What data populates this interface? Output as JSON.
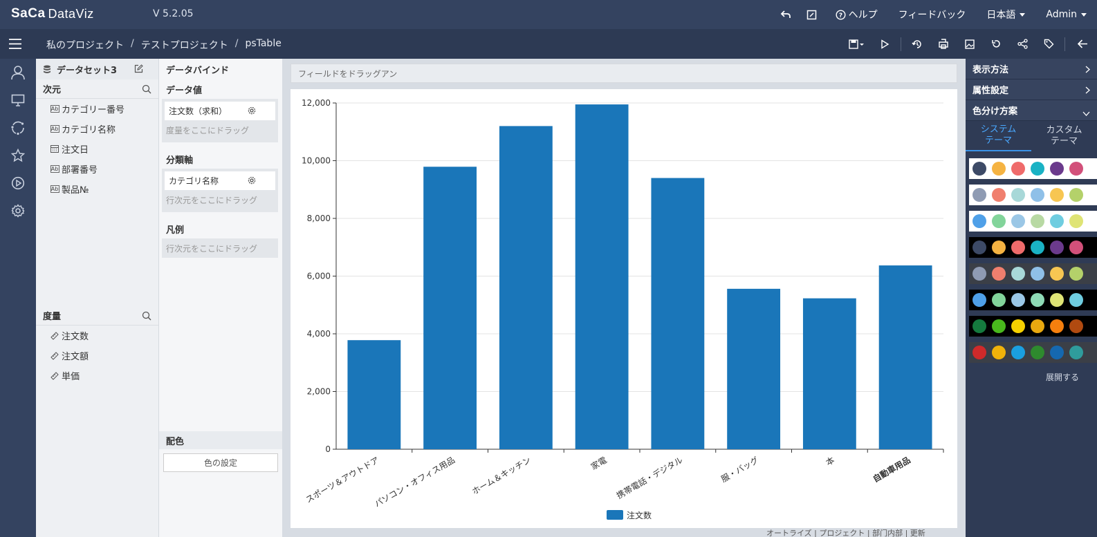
{
  "app": {
    "logo": "SaCa",
    "logo_product": "DataViz",
    "version": "V 5.2.05"
  },
  "topbar": {
    "help_label": "ヘルプ",
    "feedback_label": "フィードバック",
    "language_label": "日本語",
    "user_label": "Admin"
  },
  "breadcrumb": {
    "items": [
      "私のプロジェクト",
      "テストプロジェクト",
      "psTable"
    ],
    "separator": "/"
  },
  "dataset": {
    "name": "データセット3",
    "dimension_title": "次元",
    "dimensions": [
      "カテゴリー番号",
      "カテゴリ名称",
      "注文日",
      "部署番号",
      "製品№"
    ],
    "measure_title": "度量",
    "measures": [
      "注文数",
      "注文額",
      "単価"
    ]
  },
  "bind": {
    "title": "データバインド",
    "value_title": "データ値",
    "value_chip": "注文数（求和）",
    "value_drop": "度量をここにドラッグ",
    "axis_title": "分類軸",
    "axis_chip": "カテゴリ名称",
    "axis_drop": "行次元をここにドラッグ",
    "legend_title": "凡例",
    "legend_drop": "行次元をここにドラッグ",
    "color_title": "配色",
    "color_button": "色の設定"
  },
  "chart_panel": {
    "drag_hint": "フィールドをドラッグアン",
    "status_text": "オートライズ | プロジェクト | 部门内部 | 更新"
  },
  "chart_data": {
    "type": "bar",
    "categories": [
      "スポーツ＆アウトドア",
      "パソコン・オフィス用品",
      "ホーム＆キッチン",
      "家電",
      "携帯電話・デジタル",
      "服・バッグ",
      "本",
      "自動車用品"
    ],
    "series": [
      {
        "name": "注文数",
        "values": [
          3780,
          9790,
          11200,
          11950,
          9400,
          5560,
          5230,
          6370
        ],
        "color": "#1a76b9"
      }
    ],
    "yticks": [
      "0",
      "2,000",
      "4,000",
      "6,000",
      "8,000",
      "10,000",
      "12,000"
    ],
    "ylim": [
      0,
      12000
    ],
    "grid": true,
    "legend_position": "bottom"
  },
  "right_panel": {
    "display_label": "表示方法",
    "property_label": "属性設定",
    "scheme_label": "色分け方案",
    "tab_system": [
      "システム",
      "テーマ"
    ],
    "tab_custom": [
      "カスタム",
      "テーマ"
    ],
    "expand_label": "展開する",
    "palettes": [
      {
        "bg": "#ffffff",
        "colors": [
          "#3d4a66",
          "#f5b342",
          "#ef6b6b",
          "#1ab2c4",
          "#6b3a8c",
          "#d2507a"
        ]
      },
      {
        "bg": "#ffffff",
        "colors": [
          "#8f9bb3",
          "#f07f6e",
          "#a8d8d8",
          "#8fc0e8",
          "#f7c652",
          "#b4d16a"
        ]
      },
      {
        "bg": "#ffffff",
        "colors": [
          "#4fa0e8",
          "#82d49a",
          "#9bc7e6",
          "#b8d9a3",
          "#6fcde0",
          "#dfe475"
        ]
      },
      {
        "bg": "#000000",
        "colors": [
          "#3d4a66",
          "#f5b342",
          "#ef6b6b",
          "#1ab2c4",
          "#6b3a8c",
          "#d2507a"
        ]
      },
      {
        "bg": "#3b3f47",
        "colors": [
          "#8f9bb3",
          "#f07f6e",
          "#a8d8d8",
          "#8fc0e8",
          "#f7c652",
          "#b4d16a"
        ]
      },
      {
        "bg": "#000000",
        "colors": [
          "#4fa0e8",
          "#82d49a",
          "#9bc7e6",
          "#8fdbb6",
          "#dfe475",
          "#6fcde0"
        ]
      },
      {
        "bg": "#000000",
        "colors": [
          "#157a3e",
          "#49b81d",
          "#f5d000",
          "#e8a80f",
          "#f57f0e",
          "#b04a10"
        ]
      },
      {
        "bg": "#3b3f47",
        "colors": [
          "#cf2a2a",
          "#f0b20a",
          "#1a9fe0",
          "#2e8a2e",
          "#1568b0",
          "#2f9c9c"
        ]
      }
    ]
  }
}
